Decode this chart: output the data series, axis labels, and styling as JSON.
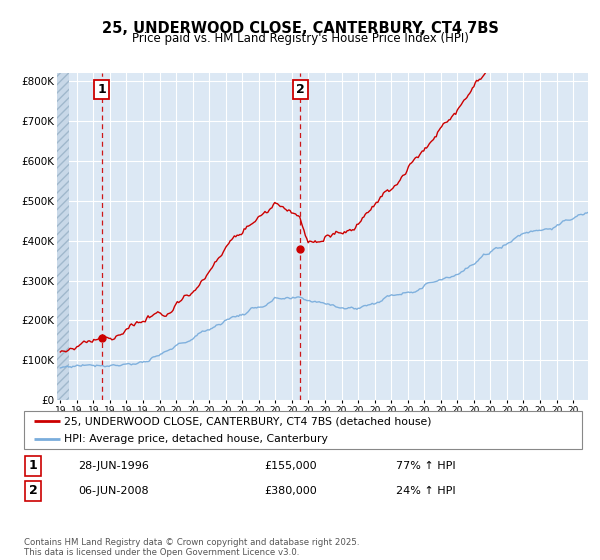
{
  "title": "25, UNDERWOOD CLOSE, CANTERBURY, CT4 7BS",
  "subtitle": "Price paid vs. HM Land Registry's House Price Index (HPI)",
  "ylim": [
    0,
    820000
  ],
  "yticks": [
    0,
    100000,
    200000,
    300000,
    400000,
    500000,
    600000,
    700000,
    800000
  ],
  "ytick_labels": [
    "£0",
    "£100K",
    "£200K",
    "£300K",
    "£400K",
    "£500K",
    "£600K",
    "£700K",
    "£800K"
  ],
  "line1_color": "#cc0000",
  "line2_color": "#7aaddc",
  "vline_color": "#cc0000",
  "t1_x": 1996.5,
  "t1_y": 155000,
  "t2_x": 2008.5,
  "t2_y": 380000,
  "legend_entry1": "25, UNDERWOOD CLOSE, CANTERBURY, CT4 7BS (detached house)",
  "legend_entry2": "HPI: Average price, detached house, Canterbury",
  "footnote": "Contains HM Land Registry data © Crown copyright and database right 2025.\nThis data is licensed under the Open Government Licence v3.0.",
  "background_color": "#ffffff",
  "plot_bg_color": "#dce8f4",
  "grid_color": "#ffffff",
  "hatch_region_end": 1994.5,
  "xmin": 1993.8,
  "xmax": 2025.9
}
